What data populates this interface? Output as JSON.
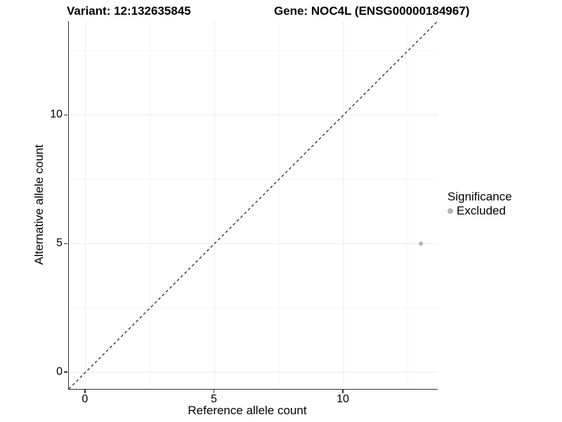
{
  "header": {
    "variant_title": "Variant: 12:132635845",
    "gene_title": "Gene: NOC4L (ENSG00000184967)"
  },
  "chart_data": {
    "type": "scatter",
    "title": "Variant: 12:132635845    Gene: NOC4L (ENSG00000184967)",
    "xlabel": "Reference allele count",
    "ylabel": "Alternative allele count",
    "xlim": [
      -0.65,
      13.65
    ],
    "ylim": [
      -0.65,
      13.65
    ],
    "x_major_ticks": [
      0,
      5,
      10
    ],
    "y_major_ticks": [
      0,
      5,
      10
    ],
    "x_minor_ticks": [
      2.5,
      7.5,
      12.5
    ],
    "y_minor_ticks": [
      2.5,
      7.5,
      12.5
    ],
    "grid": true,
    "reference_line": {
      "kind": "abline",
      "slope": 1,
      "intercept": 0,
      "style": "dashed",
      "color": "#1a1a1a"
    },
    "series": [
      {
        "name": "Excluded",
        "color": "#b5b5b5",
        "point_radius": 3,
        "points": [
          {
            "x": 13,
            "y": 5
          }
        ]
      }
    ],
    "legend": {
      "title": "Significance",
      "position": "right",
      "items": [
        {
          "label": "Excluded",
          "color": "#b5b5b5"
        }
      ]
    }
  },
  "colors": {
    "background": "#ffffff",
    "grid_major": "#ebebeb",
    "grid_minor": "#f4f4f4",
    "axis": "#333333",
    "text": "#000000"
  }
}
